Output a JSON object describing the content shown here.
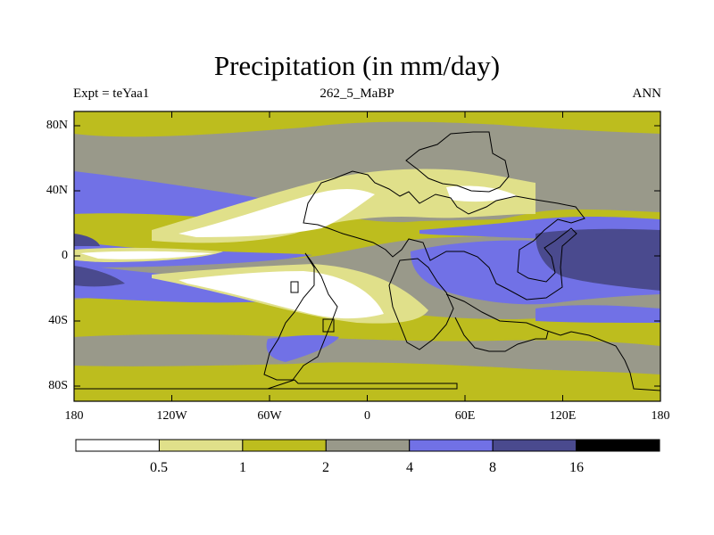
{
  "title": "Precipitation (in mm/day)",
  "subtitle_left": "Expt = teYaa1",
  "subtitle_center": "262_5_MaBP",
  "subtitle_right": "ANN",
  "lat_labels": [
    "80N",
    "40N",
    "0",
    "40S",
    "80S"
  ],
  "lon_labels": [
    "180",
    "120W",
    "60W",
    "0",
    "60E",
    "120E",
    "180"
  ],
  "colorbar": {
    "levels": [
      "0.5",
      "1",
      "2",
      "4",
      "8",
      "16"
    ],
    "colors": [
      "#ffffff",
      "#e0e08a",
      "#bdbd1e",
      "#99998a",
      "#7171e6",
      "#4a4a8e",
      "#000000"
    ],
    "bins": [
      "<0.5",
      "0.5-1",
      "1-2",
      "2-4",
      "4-8",
      "8-16",
      ">16"
    ]
  },
  "map": {
    "lon_range": [
      -180,
      180
    ],
    "lat_range": [
      -90,
      90
    ],
    "description_bands": "zonal precipitation regions"
  }
}
